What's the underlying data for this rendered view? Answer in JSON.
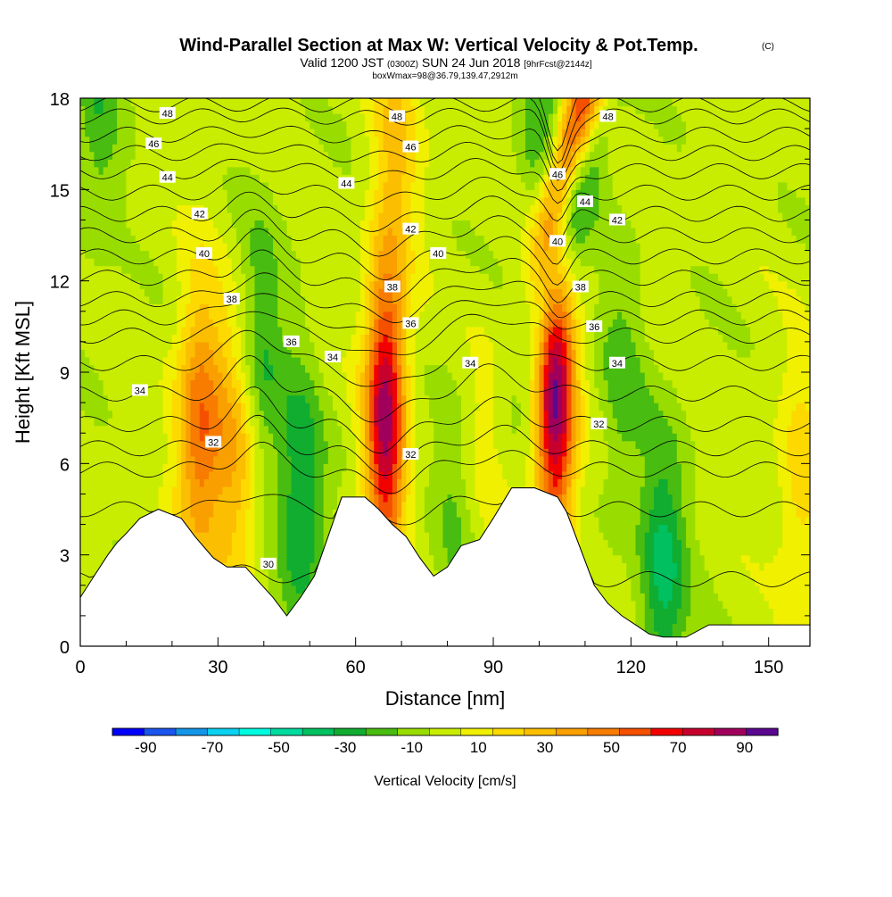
{
  "chart_data": {
    "type": "heatmap",
    "title": "Wind-Parallel Section at Max W: Vertical Velocity & Pot.Temp.",
    "copyright": "(C)",
    "subtitle_parts": [
      "Valid 1200 JST",
      "(0300Z)",
      "SUN 24 Jun 2018",
      "[9hrFcst@2144z]"
    ],
    "subtitle2": "boxWmax=98@36.79,139.47,2912m",
    "xlabel": "Distance [nm]",
    "ylabel": "Height [Kft MSL]",
    "xlim": [
      0,
      159
    ],
    "ylim": [
      0,
      18
    ],
    "x_ticks": [
      "0",
      "30",
      "60",
      "90",
      "120",
      "150"
    ],
    "y_ticks": [
      "0",
      "3",
      "6",
      "9",
      "12",
      "15",
      "18"
    ],
    "colorbar": {
      "label": "Vertical Velocity [cm/s]",
      "tick_labels": [
        "-90",
        "-70",
        "-50",
        "-30",
        "-10",
        "10",
        "30",
        "50",
        "70",
        "90"
      ],
      "levels": [
        -100,
        -90,
        -80,
        -70,
        -60,
        -50,
        -40,
        -30,
        -20,
        -10,
        0,
        10,
        20,
        30,
        40,
        50,
        60,
        70,
        80,
        90,
        100
      ],
      "colors": [
        "#0000ff",
        "#1a55ee",
        "#1496e8",
        "#0ad2f0",
        "#00fce0",
        "#00dca0",
        "#00c060",
        "#10ad30",
        "#48bc10",
        "#99dd00",
        "#c8ed00",
        "#f0f000",
        "#fdd900",
        "#fbbe00",
        "#f9a000",
        "#f77c00",
        "#f55000",
        "#f20000",
        "#c8002e",
        "#a0005c",
        "#5a0890"
      ]
    },
    "terrain_kft": [
      [
        0,
        1.6
      ],
      [
        3,
        2.3
      ],
      [
        6,
        3.0
      ],
      [
        8,
        3.4
      ],
      [
        10,
        3.7
      ],
      [
        13,
        4.2
      ],
      [
        17,
        4.5
      ],
      [
        22,
        4.2
      ],
      [
        25,
        3.6
      ],
      [
        29,
        2.9
      ],
      [
        32,
        2.6
      ],
      [
        36,
        2.6
      ],
      [
        39,
        2.1
      ],
      [
        42,
        1.6
      ],
      [
        45,
        1.0
      ],
      [
        48,
        1.6
      ],
      [
        51,
        2.3
      ],
      [
        54,
        3.6
      ],
      [
        57,
        4.9
      ],
      [
        62,
        4.9
      ],
      [
        65,
        4.5
      ],
      [
        68,
        4.0
      ],
      [
        71,
        3.6
      ],
      [
        74,
        2.9
      ],
      [
        77,
        2.3
      ],
      [
        80,
        2.6
      ],
      [
        83,
        3.3
      ],
      [
        87,
        3.5
      ],
      [
        90,
        4.2
      ],
      [
        94,
        5.2
      ],
      [
        99,
        5.2
      ],
      [
        104,
        4.9
      ],
      [
        106,
        4.4
      ],
      [
        108,
        3.6
      ],
      [
        112,
        2.0
      ],
      [
        115,
        1.4
      ],
      [
        118,
        1.0
      ],
      [
        121,
        0.7
      ],
      [
        124,
        0.4
      ],
      [
        127,
        0.3
      ],
      [
        132,
        0.3
      ],
      [
        137,
        0.7
      ],
      [
        159,
        0.7
      ]
    ],
    "updrafts": [
      {
        "x": 26,
        "z": 7.2,
        "peak": 55
      },
      {
        "x": 34,
        "z": 6.0,
        "peak": 38
      },
      {
        "x": 66.5,
        "z": 7.6,
        "peak": 90
      },
      {
        "x": 103.5,
        "z": 8.2,
        "peak": 98
      },
      {
        "x": 109,
        "z": 17.6,
        "peak": 70
      },
      {
        "x": 69,
        "z": 16.5,
        "peak": 25
      },
      {
        "x": 157,
        "z": 5.0,
        "peak": 22
      },
      {
        "x": 87,
        "z": 6.0,
        "peak": 12
      }
    ],
    "downdrafts": [
      {
        "x": 48,
        "z": 4.5,
        "peak": -35
      },
      {
        "x": 39,
        "z": 9.3,
        "peak": -28
      },
      {
        "x": 106,
        "z": 13.8,
        "peak": -35
      },
      {
        "x": 127,
        "z": 2.3,
        "peak": -38
      },
      {
        "x": 101,
        "z": 17.5,
        "peak": -25
      },
      {
        "x": 82,
        "z": 4.6,
        "peak": -15
      },
      {
        "x": 118,
        "z": 8.6,
        "peak": -18
      },
      {
        "x": 4,
        "z": 17.6,
        "peak": -20
      }
    ],
    "theta_contours": {
      "levels": [
        29,
        30,
        31,
        32,
        33,
        34,
        35,
        36,
        37,
        38,
        39,
        40,
        41,
        42,
        43,
        44,
        45,
        46,
        47,
        48,
        49
      ],
      "base_height_kft": [
        {
          "theta": 29,
          "z": 2.2
        },
        {
          "theta": 30,
          "z": 4.5
        },
        {
          "theta": 31,
          "z": 5.8
        },
        {
          "theta": 32,
          "z": 6.5
        },
        {
          "theta": 33,
          "z": 7.3
        },
        {
          "theta": 34,
          "z": 8.3
        },
        {
          "theta": 35,
          "z": 9.3
        },
        {
          "theta": 36,
          "z": 10.2
        },
        {
          "theta": 37,
          "z": 10.8
        },
        {
          "theta": 38,
          "z": 11.4
        },
        {
          "theta": 39,
          "z": 12.1
        },
        {
          "theta": 40,
          "z": 12.8
        },
        {
          "theta": 41,
          "z": 13.5
        },
        {
          "theta": 42,
          "z": 14.2
        },
        {
          "theta": 43,
          "z": 14.9
        },
        {
          "theta": 44,
          "z": 15.6
        },
        {
          "theta": 45,
          "z": 16.2
        },
        {
          "theta": 46,
          "z": 16.8
        },
        {
          "theta": 47,
          "z": 17.4
        },
        {
          "theta": 48,
          "z": 17.8
        },
        {
          "theta": 49,
          "z": 18.4
        }
      ],
      "labels": [
        {
          "text": "48",
          "x": 19,
          "z": 17.5
        },
        {
          "text": "46",
          "x": 16,
          "z": 16.5
        },
        {
          "text": "44",
          "x": 19,
          "z": 15.4
        },
        {
          "text": "42",
          "x": 26,
          "z": 14.2
        },
        {
          "text": "40",
          "x": 27,
          "z": 12.9
        },
        {
          "text": "38",
          "x": 33,
          "z": 11.4
        },
        {
          "text": "36",
          "x": 46,
          "z": 10.0
        },
        {
          "text": "34",
          "x": 13,
          "z": 8.4
        },
        {
          "text": "34",
          "x": 55,
          "z": 9.5
        },
        {
          "text": "32",
          "x": 29,
          "z": 6.7
        },
        {
          "text": "30",
          "x": 41,
          "z": 2.7
        },
        {
          "text": "48",
          "x": 69,
          "z": 17.4
        },
        {
          "text": "46",
          "x": 72,
          "z": 16.4
        },
        {
          "text": "44",
          "x": 58,
          "z": 15.2
        },
        {
          "text": "42",
          "x": 72,
          "z": 13.7
        },
        {
          "text": "40",
          "x": 78,
          "z": 12.9
        },
        {
          "text": "38",
          "x": 68,
          "z": 11.8
        },
        {
          "text": "36",
          "x": 72,
          "z": 10.6
        },
        {
          "text": "34",
          "x": 85,
          "z": 9.3
        },
        {
          "text": "32",
          "x": 72,
          "z": 6.3
        },
        {
          "text": "48",
          "x": 115,
          "z": 17.4
        },
        {
          "text": "46",
          "x": 104,
          "z": 15.5
        },
        {
          "text": "44",
          "x": 110,
          "z": 14.6
        },
        {
          "text": "42",
          "x": 117,
          "z": 14.0
        },
        {
          "text": "40",
          "x": 104,
          "z": 13.3
        },
        {
          "text": "38",
          "x": 109,
          "z": 11.8
        },
        {
          "text": "36",
          "x": 112,
          "z": 10.5
        },
        {
          "text": "34",
          "x": 117,
          "z": 9.3
        },
        {
          "text": "32",
          "x": 113,
          "z": 7.3
        }
      ]
    }
  }
}
